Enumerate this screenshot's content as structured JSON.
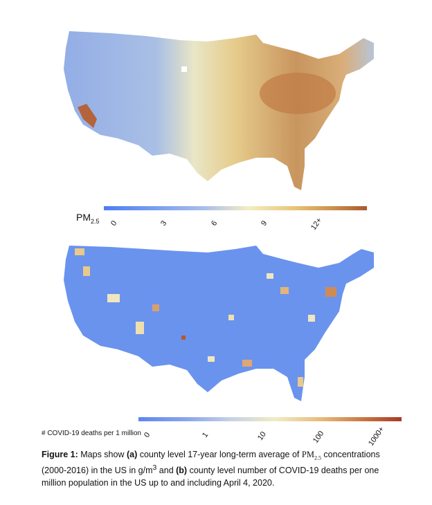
{
  "map_a": {
    "colorbar_ticks": [
      "0",
      "3",
      "6",
      "9",
      "12+"
    ],
    "colorbar_label_main": "PM",
    "colorbar_label_sub": "2.5"
  },
  "map_b": {
    "colorbar_ticks": [
      "0",
      "1",
      "10",
      "100",
      "1000+"
    ],
    "colorbar_label": "# COVID-19 deaths per 1 million"
  },
  "caption": {
    "prefix": "Figure 1:",
    "t1": " Maps show ",
    "a": "(a)",
    "t2": " county level 17-year long-term average of ",
    "pm": "PM",
    "pm_sub": "2.5",
    "t3": " concentrations (2000-2016) in the US in ",
    "unit": "g/m",
    "unit_sup": "3",
    "t4": " and ",
    "b": "(b)",
    "t5": " county level number of COVID-19 deaths per one million population in the US up to and including April 4, 2020."
  },
  "colors": {
    "low": "#5b86ee",
    "mid": "#f1ecc4",
    "high": "#a95a2c"
  }
}
